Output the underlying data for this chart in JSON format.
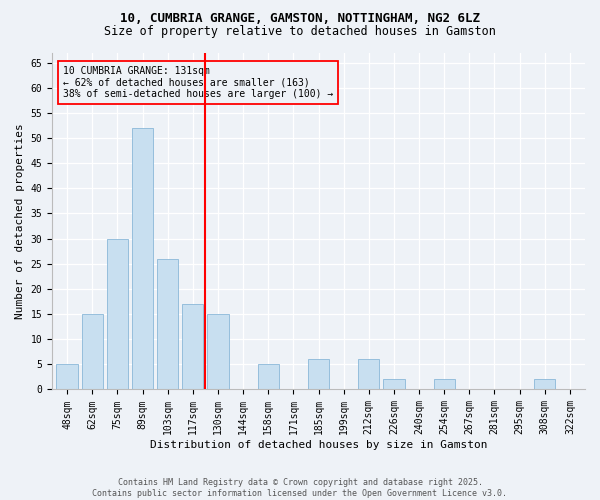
{
  "title_line1": "10, CUMBRIA GRANGE, GAMSTON, NOTTINGHAM, NG2 6LZ",
  "title_line2": "Size of property relative to detached houses in Gamston",
  "xlabel": "Distribution of detached houses by size in Gamston",
  "ylabel": "Number of detached properties",
  "categories": [
    "48sqm",
    "62sqm",
    "75sqm",
    "89sqm",
    "103sqm",
    "117sqm",
    "130sqm",
    "144sqm",
    "158sqm",
    "171sqm",
    "185sqm",
    "199sqm",
    "212sqm",
    "226sqm",
    "240sqm",
    "254sqm",
    "267sqm",
    "281sqm",
    "295sqm",
    "308sqm",
    "322sqm"
  ],
  "values": [
    5,
    15,
    30,
    52,
    26,
    17,
    15,
    0,
    5,
    0,
    6,
    0,
    6,
    2,
    0,
    2,
    0,
    0,
    0,
    2,
    0
  ],
  "bar_color": "#c8dff0",
  "bar_edge_color": "#8ab8d8",
  "red_line_x": 5.5,
  "annotation_line1": "10 CUMBRIA GRANGE: 131sqm",
  "annotation_line2": "← 62% of detached houses are smaller (163)",
  "annotation_line3": "38% of semi-detached houses are larger (100) →",
  "ylim": [
    0,
    67
  ],
  "yticks": [
    0,
    5,
    10,
    15,
    20,
    25,
    30,
    35,
    40,
    45,
    50,
    55,
    60,
    65
  ],
  "footer_line1": "Contains HM Land Registry data © Crown copyright and database right 2025.",
  "footer_line2": "Contains public sector information licensed under the Open Government Licence v3.0.",
  "background_color": "#eef2f7",
  "title_fontsize": 9,
  "subtitle_fontsize": 8.5,
  "axis_label_fontsize": 8,
  "tick_fontsize": 7,
  "footer_fontsize": 6,
  "annotation_fontsize": 7
}
